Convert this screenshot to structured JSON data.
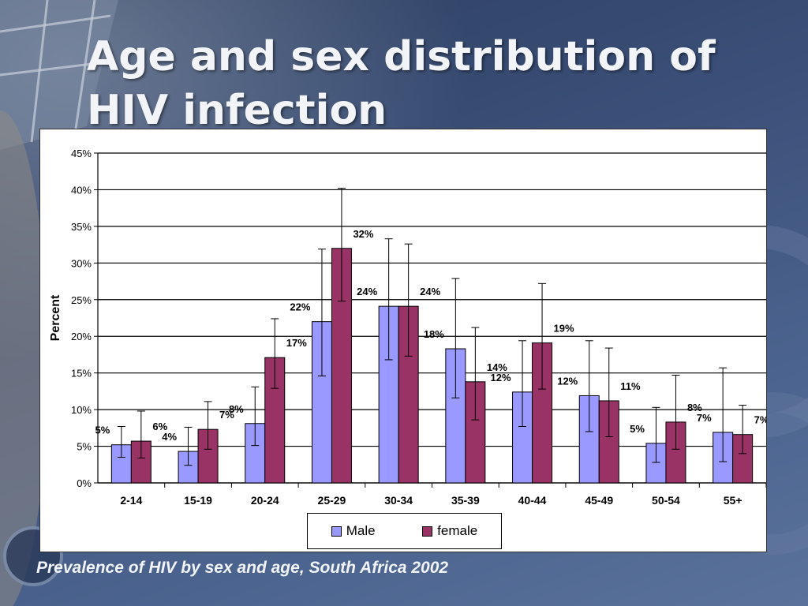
{
  "slide": {
    "title": "Age and sex distribution of HIV infection",
    "caption": "Prevalence of HIV by sex and age, South Africa 2002"
  },
  "colors": {
    "male": "#9999ff",
    "female": "#993366",
    "background": "#3b5079",
    "title_text": "#f2f4f8"
  },
  "chart_data": {
    "type": "bar",
    "title": "",
    "xlabel": "",
    "ylabel": "Percent",
    "ylim": [
      0,
      45
    ],
    "y_ticks": [
      "0%",
      "5%",
      "10%",
      "15%",
      "20%",
      "25%",
      "30%",
      "35%",
      "40%",
      "45%"
    ],
    "grid": true,
    "legend_position": "bottom",
    "categories": [
      "2-14",
      "15-19",
      "20-24",
      "25-29",
      "30-34",
      "35-39",
      "40-44",
      "45-49",
      "50-54",
      "55+"
    ],
    "series": [
      {
        "name": "Male",
        "color": "#9999ff",
        "values": [
          5.2,
          4.3,
          8.1,
          22.0,
          24.1,
          18.3,
          12.4,
          11.9,
          5.4,
          6.9
        ],
        "labels": [
          "5%",
          "4%",
          "8%",
          "22%",
          "24%",
          "18%",
          "12%",
          "12%",
          "5%",
          "7%"
        ],
        "error_low": [
          3.5,
          2.4,
          5.1,
          14.6,
          16.8,
          11.6,
          7.7,
          7.0,
          2.8,
          2.9
        ],
        "error_high": [
          7.7,
          7.6,
          13.1,
          31.9,
          33.3,
          27.9,
          19.4,
          19.4,
          10.3,
          15.7
        ]
      },
      {
        "name": "female",
        "color": "#993366",
        "values": [
          5.7,
          7.3,
          17.1,
          32.0,
          24.1,
          13.8,
          19.1,
          11.2,
          8.3,
          6.6
        ],
        "labels": [
          "6%",
          "7%",
          "17%",
          "32%",
          "24%",
          "14%",
          "19%",
          "11%",
          "8%",
          "7%"
        ],
        "error_low": [
          3.4,
          4.6,
          12.9,
          24.8,
          17.3,
          8.6,
          12.8,
          6.3,
          4.6,
          4.0
        ],
        "error_high": [
          9.8,
          11.1,
          22.4,
          40.2,
          32.6,
          21.2,
          27.2,
          18.4,
          14.7,
          10.6
        ]
      }
    ]
  }
}
